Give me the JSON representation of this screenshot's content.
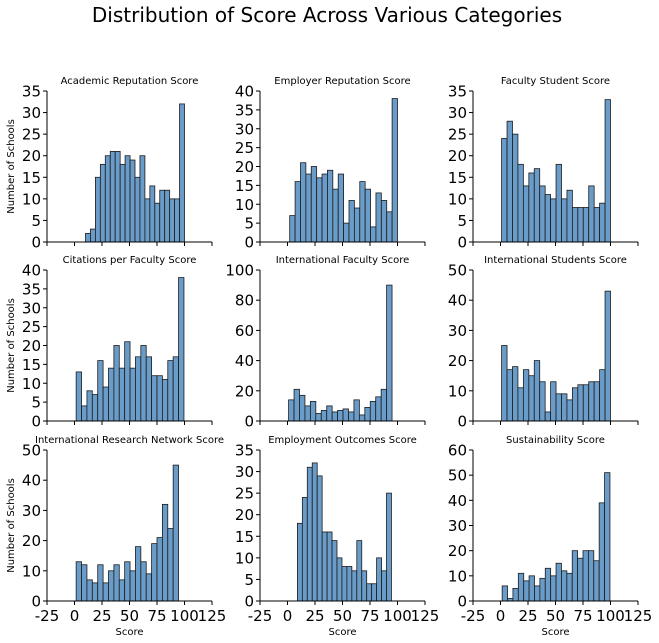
{
  "figure": {
    "title": "Distribution of Score Across Various Categories",
    "bar_color": "#6a9cc9",
    "edge_color": "#1c1c1c"
  },
  "chart_data": [
    {
      "type": "bar",
      "title": "Academic Reputation Score",
      "xlabel": "",
      "ylabel": "Number of Schools",
      "xlim": [
        -25,
        125
      ],
      "xticks": [
        -25,
        0,
        25,
        50,
        75,
        100,
        125
      ],
      "ylim": [
        0,
        35
      ],
      "yticks": [
        0,
        5,
        10,
        15,
        20,
        25,
        30,
        35
      ],
      "bin_start": 10,
      "bin_width": 4.5,
      "values": [
        2,
        3,
        15,
        18,
        20,
        21,
        21,
        18,
        20,
        19,
        15,
        20,
        10,
        13,
        9,
        12,
        12,
        10,
        10,
        32
      ]
    },
    {
      "type": "bar",
      "title": "Employer Reputation Score",
      "xlabel": "",
      "ylabel": "",
      "xlim": [
        -25,
        125
      ],
      "xticks": [
        -25,
        0,
        25,
        50,
        75,
        100,
        125
      ],
      "ylim": [
        0,
        40
      ],
      "yticks": [
        0,
        5,
        10,
        15,
        20,
        25,
        30,
        35,
        40
      ],
      "bin_start": 2,
      "bin_width": 4.9,
      "values": [
        7,
        16,
        21,
        18,
        20,
        17,
        18,
        19,
        14,
        18,
        5,
        11,
        9,
        16,
        14,
        4,
        13,
        11,
        8,
        38
      ]
    },
    {
      "type": "bar",
      "title": "Faculty Student Score",
      "xlabel": "",
      "ylabel": "",
      "xlim": [
        -25,
        125
      ],
      "xticks": [
        -25,
        0,
        25,
        50,
        75,
        100,
        125
      ],
      "ylim": [
        0,
        35
      ],
      "yticks": [
        0,
        5,
        10,
        15,
        20,
        25,
        30,
        35
      ],
      "bin_start": 1,
      "bin_width": 4.95,
      "values": [
        24,
        28,
        25,
        18,
        13,
        16,
        17,
        13,
        11,
        10,
        18,
        10,
        12,
        8,
        8,
        8,
        13,
        8,
        9,
        33
      ]
    },
    {
      "type": "bar",
      "title": "Citations per Faculty Score",
      "xlabel": "",
      "ylabel": "Number of Schools",
      "xlim": [
        -25,
        125
      ],
      "xticks": [
        -25,
        0,
        25,
        50,
        75,
        100,
        125
      ],
      "ylim": [
        0,
        40
      ],
      "yticks": [
        0,
        5,
        10,
        15,
        20,
        25,
        30,
        35,
        40
      ],
      "bin_start": 1.5,
      "bin_width": 4.9,
      "values": [
        13,
        4,
        8,
        7,
        16,
        9,
        14,
        20,
        14,
        21,
        14,
        17,
        20,
        17,
        12,
        12,
        11,
        16,
        17,
        38
      ]
    },
    {
      "type": "bar",
      "title": "International Faculty Score",
      "xlabel": "",
      "ylabel": "",
      "xlim": [
        -25,
        125
      ],
      "xticks": [
        -25,
        0,
        25,
        50,
        75,
        100,
        125
      ],
      "ylim": [
        0,
        100
      ],
      "yticks": [
        0,
        20,
        40,
        60,
        80,
        100
      ],
      "bin_start": 1,
      "bin_width": 4.95,
      "values": [
        14,
        21,
        17,
        10,
        13,
        5,
        7,
        10,
        6,
        7,
        8,
        6,
        14,
        4,
        9,
        13,
        16,
        21,
        90
      ]
    },
    {
      "type": "bar",
      "title": "International Students Score",
      "xlabel": "",
      "ylabel": "",
      "xlim": [
        -25,
        125
      ],
      "xticks": [
        -25,
        0,
        25,
        50,
        75,
        100,
        125
      ],
      "ylim": [
        0,
        50
      ],
      "yticks": [
        0,
        10,
        20,
        30,
        40,
        50
      ],
      "bin_start": 1,
      "bin_width": 4.95,
      "values": [
        25,
        17,
        18,
        11,
        17,
        15,
        20,
        13,
        3,
        13,
        9,
        9,
        7,
        11,
        12,
        12,
        13,
        13,
        17,
        43
      ]
    },
    {
      "type": "bar",
      "title": "International Research Network Score",
      "xlabel": "Score",
      "ylabel": "Number of Schools",
      "xlim": [
        -25,
        125
      ],
      "xticks": [
        -25,
        0,
        25,
        50,
        75,
        100,
        125
      ],
      "ylim": [
        0,
        50
      ],
      "yticks": [
        0,
        10,
        20,
        30,
        40,
        50
      ],
      "bin_start": 1.5,
      "bin_width": 4.9,
      "values": [
        13,
        12,
        7,
        6,
        12,
        6,
        10,
        12,
        7,
        13,
        10,
        18,
        13,
        9,
        19,
        21,
        32,
        24,
        45
      ]
    },
    {
      "type": "bar",
      "title": "Employment Outcomes Score",
      "xlabel": "Score",
      "ylabel": "",
      "xlim": [
        -25,
        125
      ],
      "xticks": [
        -25,
        0,
        25,
        50,
        75,
        100,
        125
      ],
      "ylim": [
        0,
        35
      ],
      "yticks": [
        0,
        5,
        10,
        15,
        20,
        25,
        30,
        35
      ],
      "bin_start": 9,
      "bin_width": 4.5,
      "values": [
        18,
        24,
        31,
        32,
        29,
        16,
        16,
        14,
        10,
        8,
        8,
        7,
        14,
        7,
        4,
        4,
        10,
        7,
        25
      ]
    },
    {
      "type": "bar",
      "title": "Sustainability Score",
      "xlabel": "Score",
      "ylabel": "",
      "xlim": [
        -25,
        125
      ],
      "xticks": [
        -25,
        0,
        25,
        50,
        75,
        100,
        125
      ],
      "ylim": [
        0,
        60
      ],
      "yticks": [
        0,
        10,
        20,
        30,
        40,
        50,
        60
      ],
      "bin_start": 1.5,
      "bin_width": 4.9,
      "values": [
        6,
        1,
        5,
        11,
        8,
        10,
        6,
        9,
        13,
        10,
        15,
        12,
        11,
        20,
        17,
        20,
        20,
        16,
        39,
        51
      ]
    }
  ]
}
